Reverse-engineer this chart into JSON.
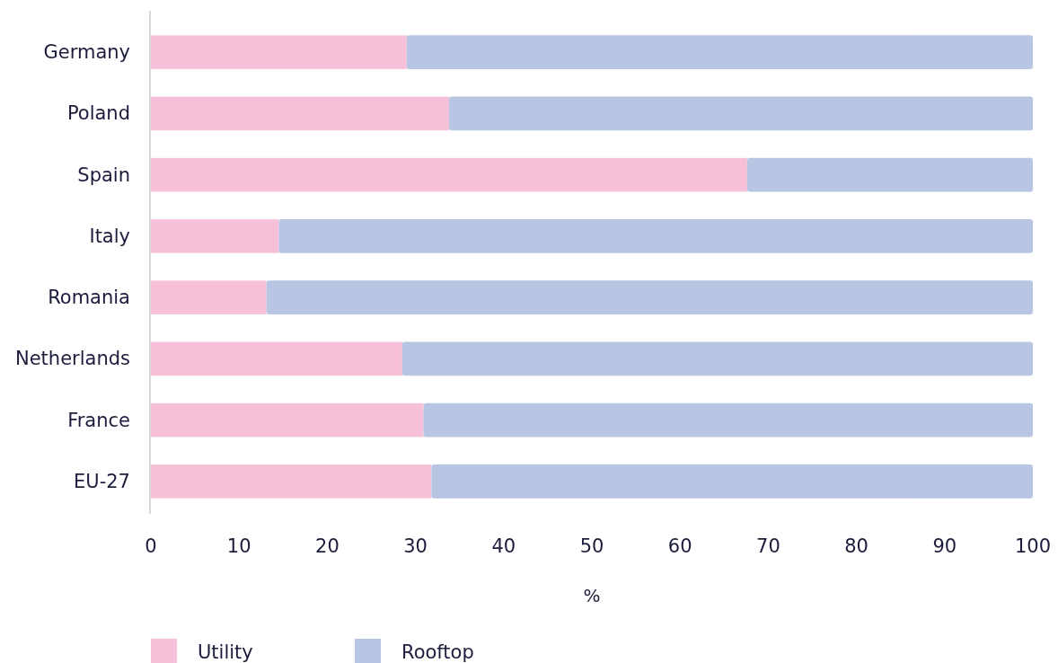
{
  "chart_data": {
    "type": "bar",
    "orientation": "horizontal",
    "stacked": true,
    "xlabel": "%",
    "categories": [
      "Germany",
      "Poland",
      "Spain",
      "Italy",
      "Romania",
      "Netherlands",
      "France",
      "EU-27"
    ],
    "series": [
      {
        "name": "Utility",
        "color": "#f6c1d8",
        "values": [
          29,
          33.8,
          67.6,
          14.5,
          13.1,
          28.5,
          30.9,
          31.8
        ]
      },
      {
        "name": "Rooftop",
        "color": "#b8c5e3",
        "values": [
          71,
          66.2,
          32.4,
          85.5,
          86.9,
          71.5,
          69.1,
          68.2
        ]
      }
    ],
    "xlim": [
      0,
      100
    ],
    "xticks": [
      0,
      10,
      20,
      30,
      40,
      50,
      60,
      70,
      80,
      90,
      100
    ],
    "grid": false,
    "legend": "bottom"
  }
}
